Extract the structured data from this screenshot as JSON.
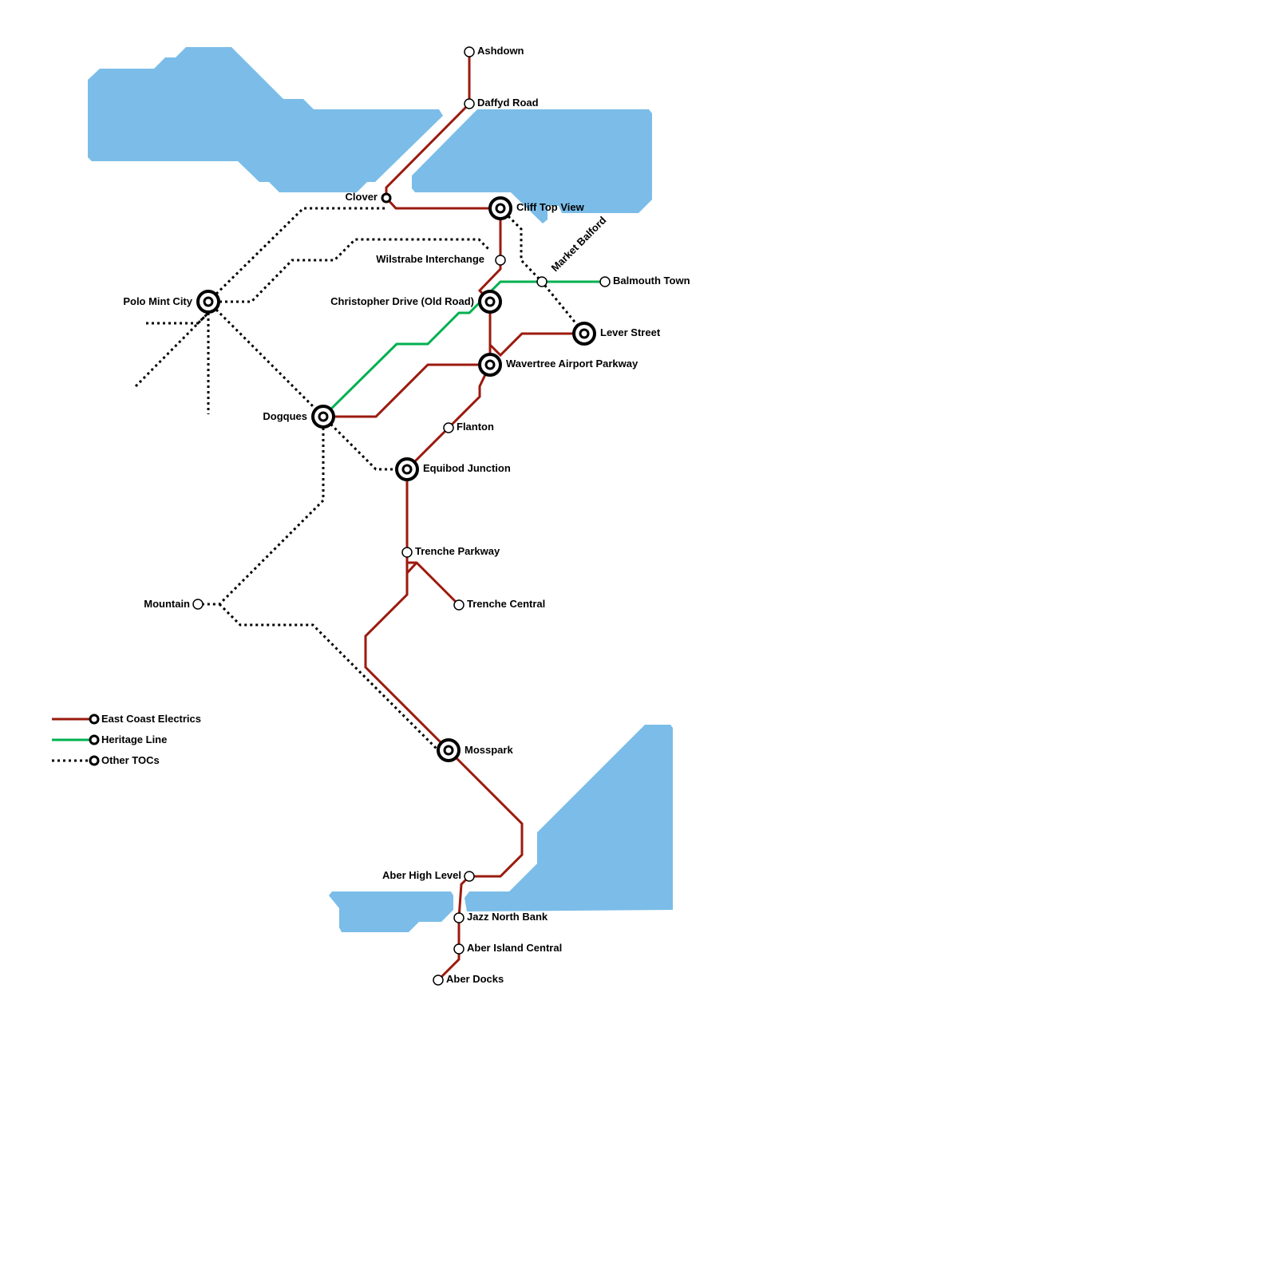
{
  "colors": {
    "east_coast": "#9b1a0e",
    "heritage": "#00b050",
    "other": "#000000",
    "water": "#7bbde8"
  },
  "legend": [
    {
      "label": "East Coast Electrics",
      "style": "solid-red"
    },
    {
      "label": "Heritage Line",
      "style": "solid-green"
    },
    {
      "label": "Other TOCs",
      "style": "dotted-black"
    }
  ],
  "stations": {
    "ashdown": {
      "name": "Ashdown",
      "type": "station"
    },
    "daffyd": {
      "name": "Daffyd Road",
      "type": "station"
    },
    "clover": {
      "name": "Clover",
      "type": "station"
    },
    "clifftop": {
      "name": "Cliff Top View",
      "type": "interchange"
    },
    "wilstrabe": {
      "name": "Wilstrabe Interchange",
      "type": "station"
    },
    "marketbalford": {
      "name": "Market Balford",
      "type": "station"
    },
    "balmouth": {
      "name": "Balmouth Town",
      "type": "station"
    },
    "christopher": {
      "name": "Christopher Drive (Old Road)",
      "type": "interchange"
    },
    "lever": {
      "name": "Lever Street",
      "type": "interchange"
    },
    "wavertree": {
      "name": "Wavertree Airport Parkway",
      "type": "interchange"
    },
    "polo": {
      "name": "Polo Mint City",
      "type": "interchange"
    },
    "dogques": {
      "name": "Dogques",
      "type": "interchange"
    },
    "flanton": {
      "name": "Flanton",
      "type": "station"
    },
    "equibod": {
      "name": "Equibod Junction",
      "type": "interchange"
    },
    "trencheparkway": {
      "name": "Trenche Parkway",
      "type": "station"
    },
    "trenchecentral": {
      "name": "Trenche Central",
      "type": "station"
    },
    "mountain": {
      "name": "Mountain",
      "type": "station"
    },
    "mosspark": {
      "name": "Mosspark",
      "type": "interchange"
    },
    "aberhigh": {
      "name": "Aber High Level",
      "type": "station"
    },
    "jazz": {
      "name": "Jazz North Bank",
      "type": "station"
    },
    "aberisland": {
      "name": "Aber Island Central",
      "type": "station"
    },
    "aberdocks": {
      "name": "Aber Docks",
      "type": "station"
    }
  }
}
